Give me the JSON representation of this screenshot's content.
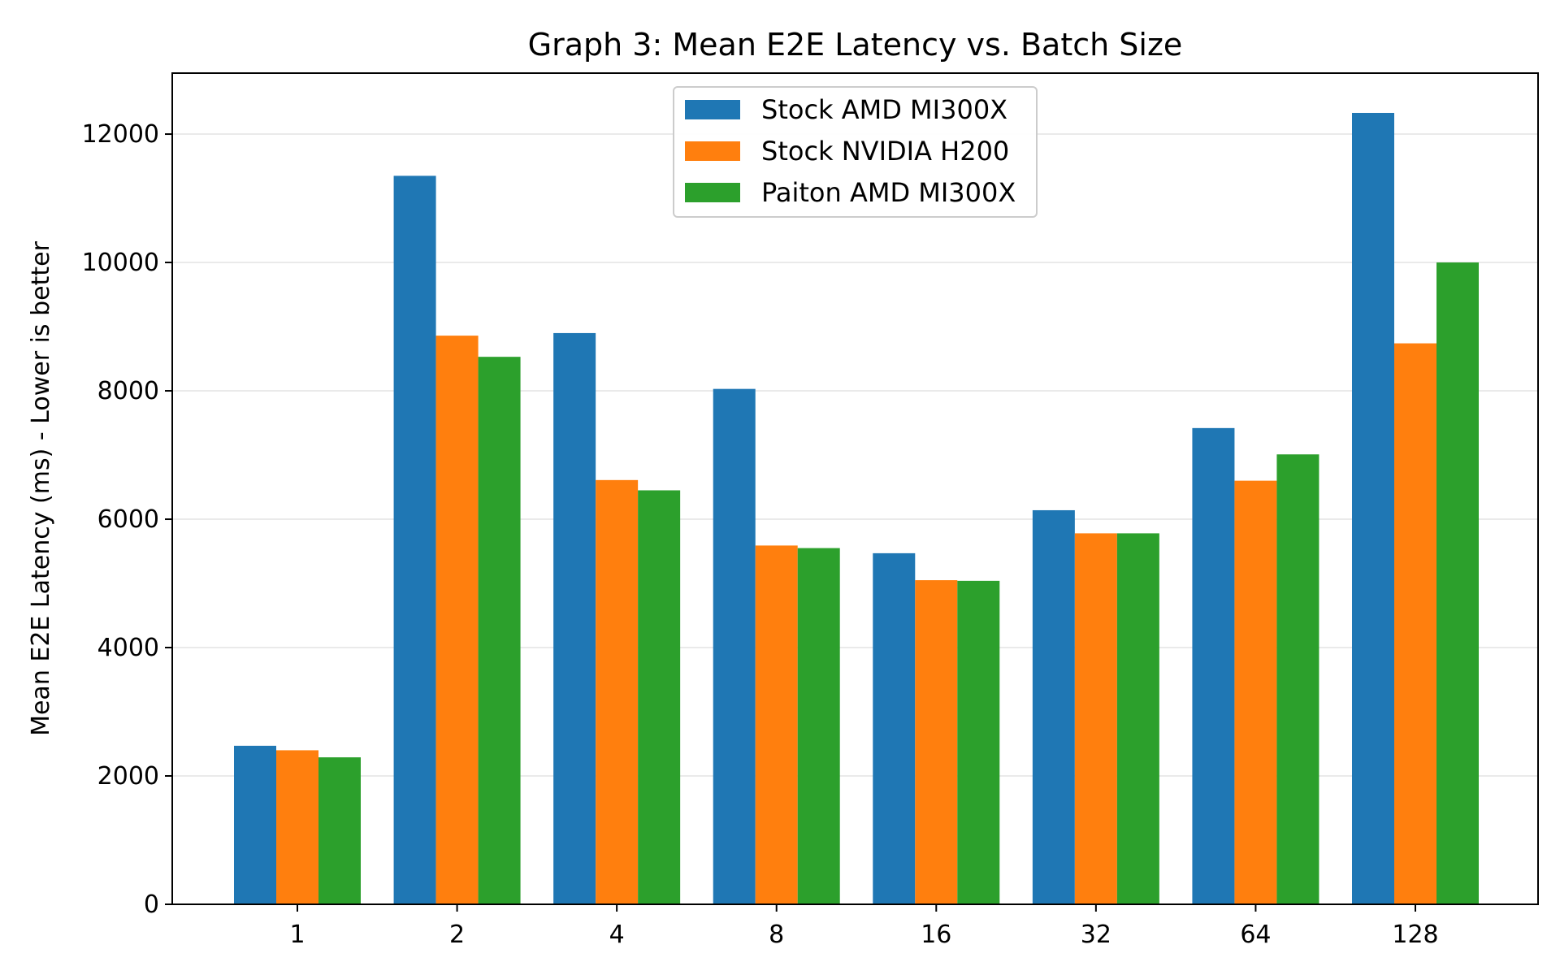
{
  "chart_data": {
    "type": "bar",
    "title": "Graph 3: Mean E2E Latency vs. Batch Size",
    "xlabel": "",
    "ylabel": "Mean E2E Latency (ms) - Lower is better",
    "categories": [
      "1",
      "2",
      "4",
      "8",
      "16",
      "32",
      "64",
      "128"
    ],
    "series": [
      {
        "name": "Stock AMD MI300X",
        "color": "#1f77b4",
        "values": [
          2470,
          11350,
          8900,
          8030,
          5470,
          6140,
          7420,
          12330
        ]
      },
      {
        "name": "Stock NVIDIA H200",
        "color": "#ff7f0e",
        "values": [
          2400,
          8860,
          6610,
          5590,
          5050,
          5780,
          6600,
          8740
        ]
      },
      {
        "name": "Paiton AMD MI300X",
        "color": "#2ca02c",
        "values": [
          2290,
          8530,
          6450,
          5550,
          5040,
          5780,
          7010,
          10000
        ]
      }
    ],
    "ylim": [
      0,
      12950
    ],
    "yticks": [
      0,
      2000,
      4000,
      6000,
      8000,
      10000,
      12000
    ],
    "grid": "y-major",
    "legend": "top-center"
  }
}
